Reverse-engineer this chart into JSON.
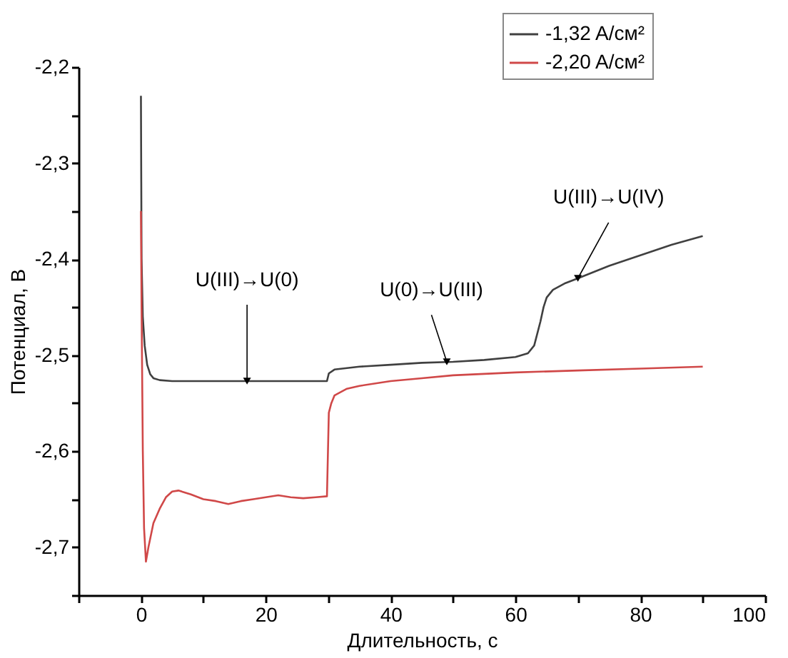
{
  "chart_data": {
    "type": "line",
    "xlabel": "Длительность, с",
    "ylabel": "Потенциал, В",
    "xlim": [
      -10,
      100
    ],
    "ylim": [
      -2.75,
      -2.2
    ],
    "xticks": [
      {
        "value": -10,
        "label": null
      },
      0,
      {
        "value": 10,
        "label": null
      },
      20,
      {
        "value": 30,
        "label": null
      },
      40,
      {
        "value": 50,
        "label": null
      },
      60,
      {
        "value": 70,
        "label": null
      },
      80,
      {
        "value": 90,
        "label": null
      },
      100
    ],
    "yticks": [
      {
        "value": -2.75,
        "label": null
      },
      {
        "value": -2.7,
        "label": "-2,7"
      },
      {
        "value": -2.65,
        "label": null
      },
      {
        "value": -2.6,
        "label": "-2,6"
      },
      {
        "value": -2.55,
        "label": null
      },
      {
        "value": -2.5,
        "label": "-2,5"
      },
      {
        "value": -2.45,
        "label": null
      },
      {
        "value": -2.4,
        "label": "-2,4"
      },
      {
        "value": -2.35,
        "label": null
      },
      {
        "value": -2.3,
        "label": "-2,3"
      },
      {
        "value": -2.25,
        "label": null
      },
      {
        "value": -2.2,
        "label": "-2,2"
      }
    ],
    "grid": false,
    "legend": "top right",
    "line_style": "solid",
    "marker": "none",
    "annotations": [
      {
        "text": "U(III)→U(0)",
        "x": 17,
        "y": -2.527
      },
      {
        "text": "U(0)→U(III)",
        "x": 49,
        "y": -2.507
      },
      {
        "text": "U(III)→U(IV)",
        "x": 70,
        "y": -2.42
      }
    ],
    "series": [
      {
        "name": "-1,32 A/см²",
        "color": "#404040",
        "x": [
          0,
          0.1,
          0.3,
          0.6,
          1,
          1.5,
          2,
          3,
          5,
          10,
          15,
          20,
          25,
          29.8,
          30.1,
          31,
          35,
          40,
          45,
          50,
          55,
          60,
          62,
          63,
          64,
          64.5,
          65,
          66,
          68,
          70,
          75,
          80,
          85,
          90
        ],
        "values": [
          -2.23,
          -2.4,
          -2.46,
          -2.49,
          -2.51,
          -2.52,
          -2.524,
          -2.526,
          -2.527,
          -2.527,
          -2.527,
          -2.527,
          -2.527,
          -2.527,
          -2.519,
          -2.515,
          -2.512,
          -2.51,
          -2.508,
          -2.507,
          -2.505,
          -2.502,
          -2.498,
          -2.49,
          -2.465,
          -2.45,
          -2.44,
          -2.432,
          -2.425,
          -2.42,
          -2.407,
          -2.396,
          -2.385,
          -2.376
        ]
      },
      {
        "name": "-2,20 A/см²",
        "color": "#d04848",
        "x": [
          0,
          0.1,
          0.3,
          0.5,
          0.8,
          1.2,
          2,
          3,
          4,
          5,
          6,
          8,
          10,
          12,
          14,
          16,
          18,
          20,
          22,
          24,
          26,
          28,
          29.8,
          30.1,
          30.5,
          31,
          33,
          35,
          40,
          45,
          50,
          60,
          70,
          80,
          90
        ],
        "values": [
          -2.35,
          -2.45,
          -2.6,
          -2.68,
          -2.715,
          -2.7,
          -2.675,
          -2.66,
          -2.648,
          -2.642,
          -2.641,
          -2.645,
          -2.65,
          -2.652,
          -2.655,
          -2.652,
          -2.65,
          -2.648,
          -2.646,
          -2.648,
          -2.649,
          -2.648,
          -2.647,
          -2.56,
          -2.55,
          -2.542,
          -2.535,
          -2.532,
          -2.527,
          -2.524,
          -2.521,
          -2.518,
          -2.516,
          -2.514,
          -2.512
        ]
      }
    ]
  }
}
